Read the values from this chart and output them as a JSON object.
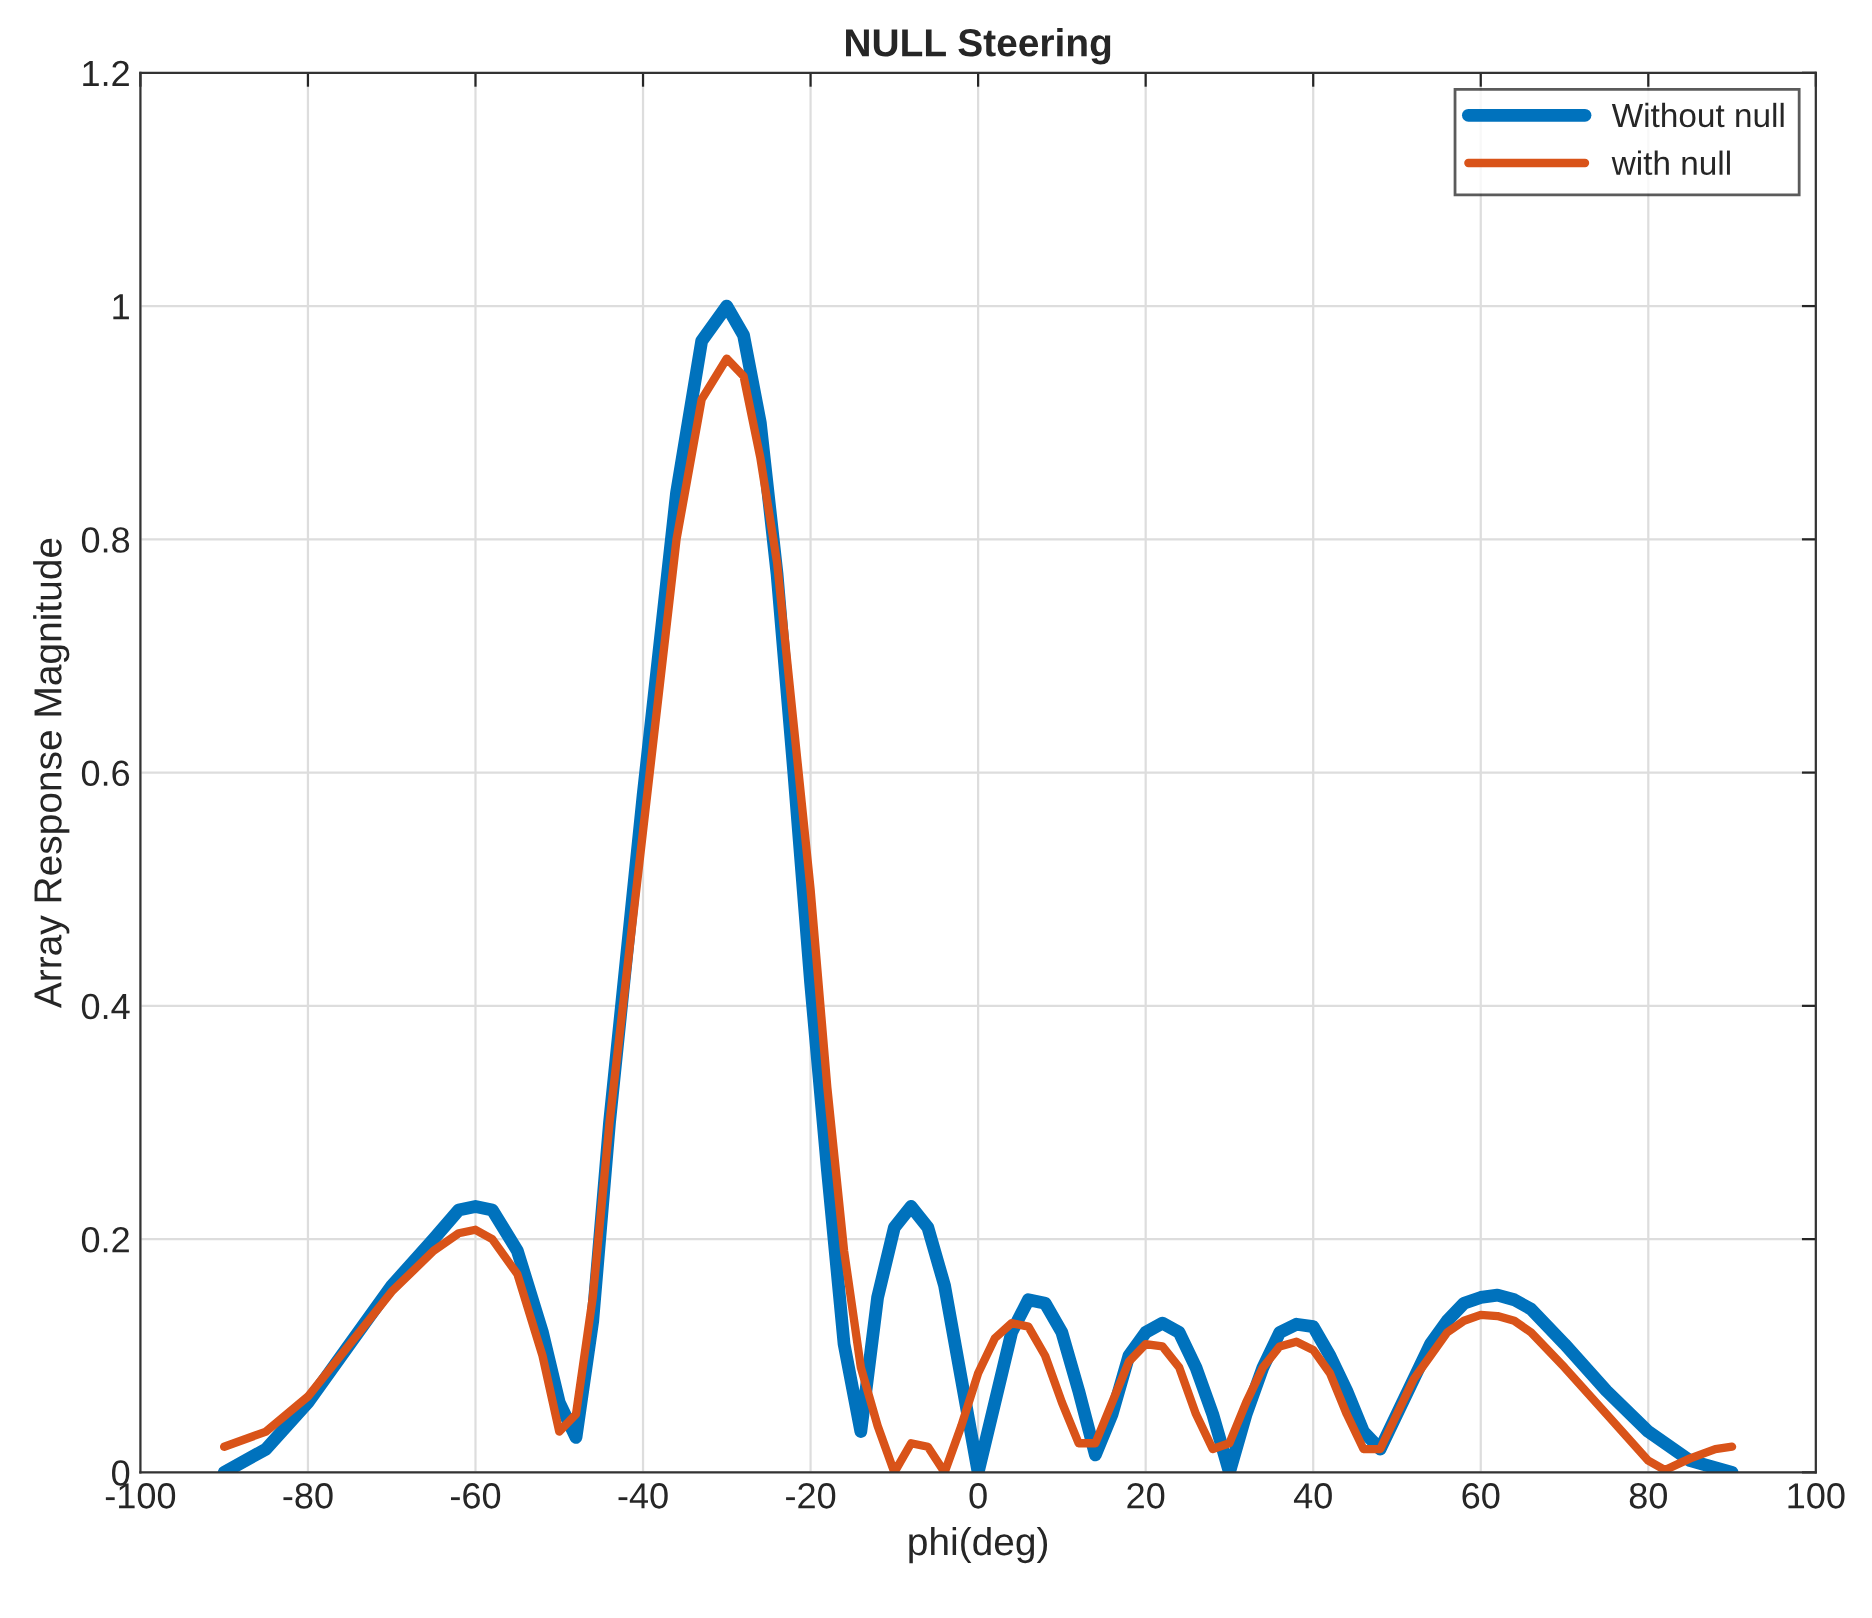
{
  "chart_data": {
    "type": "line",
    "title": "NULL Steering",
    "xlabel": "phi(deg)",
    "ylabel": "Array Response Magnitude",
    "xlim": [
      -100,
      100
    ],
    "xticks": [
      -100,
      -80,
      -60,
      -40,
      -20,
      0,
      20,
      40,
      60,
      80,
      100
    ],
    "ylim": [
      0,
      1.2
    ],
    "yticks": [
      0,
      0.2,
      0.4,
      0.6,
      0.8,
      1,
      1.2
    ],
    "grid": true,
    "legend": "top right",
    "marker": "none",
    "line_style": "solid",
    "series": [
      {
        "name": "Without null",
        "color": "#0072bd",
        "x": [
          -90,
          -85,
          -80,
          -75,
          -70,
          -65,
          -62,
          -60,
          -58,
          -55,
          -52,
          -50,
          -48,
          -46,
          -44,
          -40,
          -36,
          -33,
          -30,
          -28,
          -26,
          -24,
          -22,
          -20,
          -18,
          -16,
          -14,
          -12,
          -10,
          -8,
          -6,
          -4,
          -2,
          0,
          2,
          4,
          6,
          8,
          10,
          12,
          14,
          16,
          18,
          20,
          22,
          24,
          26,
          28,
          30,
          32,
          34,
          36,
          38,
          40,
          42,
          44,
          46,
          48,
          50,
          52,
          54,
          56,
          58,
          60,
          62,
          64,
          66,
          70,
          75,
          80,
          85,
          90
        ],
        "values": [
          0,
          0.02,
          0.06,
          0.11,
          0.16,
          0.2,
          0.225,
          0.228,
          0.225,
          0.19,
          0.12,
          0.06,
          0.03,
          0.13,
          0.3,
          0.58,
          0.84,
          0.97,
          1.0,
          0.975,
          0.9,
          0.77,
          0.6,
          0.42,
          0.26,
          0.11,
          0.035,
          0.15,
          0.21,
          0.228,
          0.21,
          0.16,
          0.08,
          0.0,
          0.06,
          0.12,
          0.148,
          0.145,
          0.12,
          0.07,
          0.015,
          0.05,
          0.1,
          0.12,
          0.128,
          0.12,
          0.09,
          0.05,
          0.0,
          0.05,
          0.09,
          0.12,
          0.127,
          0.125,
          0.1,
          0.07,
          0.035,
          0.02,
          0.05,
          0.08,
          0.11,
          0.13,
          0.145,
          0.15,
          0.152,
          0.148,
          0.14,
          0.11,
          0.07,
          0.035,
          0.01,
          0.0
        ]
      },
      {
        "name": "with null",
        "color": "#d95319",
        "x": [
          -90,
          -85,
          -80,
          -75,
          -70,
          -65,
          -62,
          -60,
          -58,
          -55,
          -52,
          -50,
          -48,
          -46,
          -44,
          -40,
          -36,
          -33,
          -30,
          -28,
          -26,
          -24,
          -22,
          -20,
          -18,
          -16,
          -14,
          -12,
          -10,
          -8,
          -6,
          -4,
          -2,
          0,
          2,
          4,
          6,
          8,
          10,
          12,
          14,
          16,
          18,
          20,
          22,
          24,
          26,
          28,
          30,
          32,
          34,
          36,
          38,
          40,
          42,
          44,
          46,
          48,
          50,
          52,
          54,
          56,
          58,
          60,
          62,
          64,
          66,
          70,
          75,
          80,
          82,
          85,
          88,
          90
        ],
        "values": [
          0.022,
          0.035,
          0.065,
          0.11,
          0.155,
          0.19,
          0.205,
          0.208,
          0.2,
          0.17,
          0.1,
          0.035,
          0.05,
          0.15,
          0.3,
          0.55,
          0.8,
          0.92,
          0.955,
          0.94,
          0.87,
          0.78,
          0.64,
          0.5,
          0.33,
          0.19,
          0.09,
          0.04,
          0.0,
          0.025,
          0.022,
          0.0,
          0.04,
          0.085,
          0.115,
          0.128,
          0.125,
          0.1,
          0.06,
          0.025,
          0.025,
          0.06,
          0.095,
          0.11,
          0.108,
          0.09,
          0.05,
          0.02,
          0.025,
          0.06,
          0.09,
          0.108,
          0.112,
          0.105,
          0.085,
          0.05,
          0.02,
          0.02,
          0.05,
          0.08,
          0.1,
          0.12,
          0.13,
          0.135,
          0.134,
          0.13,
          0.12,
          0.09,
          0.05,
          0.01,
          0.002,
          0.012,
          0.02,
          0.022
        ]
      }
    ]
  }
}
